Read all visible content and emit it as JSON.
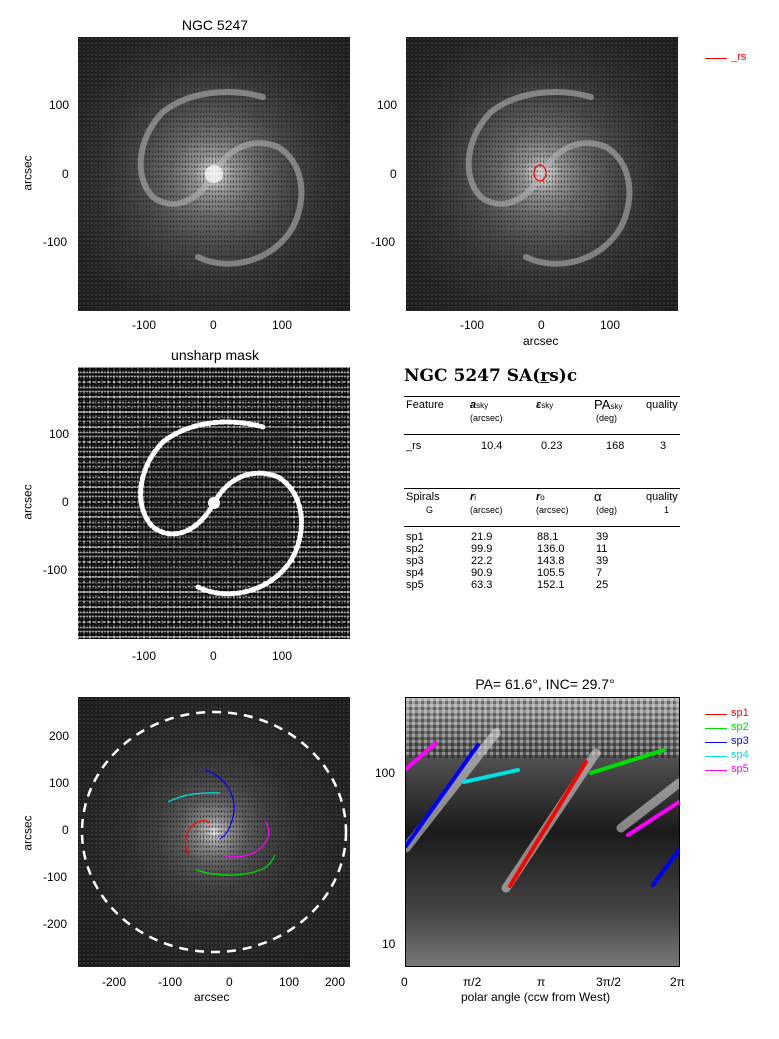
{
  "panel_titles": {
    "image": "NGC 5247",
    "unsharp": "unsharp mask",
    "polar": "PA= 61.6°, INC= 29.7°"
  },
  "axes": {
    "arcsec_label": "arcsec",
    "polar_xlabel": "polar angle (ccw from West)",
    "ticks_200": [
      "-100",
      "0",
      "100"
    ],
    "yticks_200": [
      "100",
      "0",
      "-100"
    ],
    "ticks_300": [
      "-200",
      "-100",
      "0",
      "100",
      "200"
    ],
    "yticks_300": [
      "200",
      "100",
      "0",
      "-100",
      "-200"
    ],
    "polar_xticks": [
      "0",
      "π/2",
      "π",
      "3π/2",
      "2π"
    ],
    "polar_yticks": [
      "100",
      "10"
    ]
  },
  "legend_bar": {
    "label": "_rs",
    "color": "#ff0000"
  },
  "legend_spirals": [
    {
      "label": "sp1",
      "color": "#ff0000"
    },
    {
      "label": "sp2",
      "color": "#00e000"
    },
    {
      "label": "sp3",
      "color": "#0000ff"
    },
    {
      "label": "sp4",
      "color": "#00e0e0"
    },
    {
      "label": "sp5",
      "color": "#ff00ff"
    }
  ],
  "info": {
    "title": "NGC 5247  SA(",
    "title_r": "r",
    "title_tail": "s)c",
    "bar_headers": {
      "feature": "Feature",
      "a": "a",
      "a_sub": "sky",
      "a_unit": "(arcsec)",
      "eps": "ε",
      "eps_sub": "sky",
      "pa": "PA",
      "pa_sub": "sky",
      "pa_unit": "(deg)",
      "quality": "quality"
    },
    "bar_row": {
      "feature": "_rs",
      "a": "10.4",
      "eps": "0.23",
      "pa": "168",
      "quality": "3"
    },
    "sp_headers": {
      "spirals": "Spirals",
      "spirals_sub": "G",
      "ri": "r",
      "ri_sub": "i",
      "ri_unit": "(arcsec)",
      "ro": "r",
      "ro_sub": "o",
      "ro_unit": "(arcsec)",
      "alpha": "α",
      "alpha_unit": "(deg)",
      "quality": "quality",
      "quality_val": "1"
    },
    "sp_rows": [
      {
        "name": "sp1",
        "ri": "21.9",
        "ro": "88.1",
        "alpha": "39"
      },
      {
        "name": "sp2",
        "ri": "99.9",
        "ro": "136.0",
        "alpha": "11"
      },
      {
        "name": "sp3",
        "ri": "22.2",
        "ro": "143.8",
        "alpha": "39"
      },
      {
        "name": "sp4",
        "ri": "90.9",
        "ro": "105.5",
        "alpha": "7"
      },
      {
        "name": "sp5",
        "ri": "63.3",
        "ro": "152.1",
        "alpha": "25"
      }
    ]
  }
}
